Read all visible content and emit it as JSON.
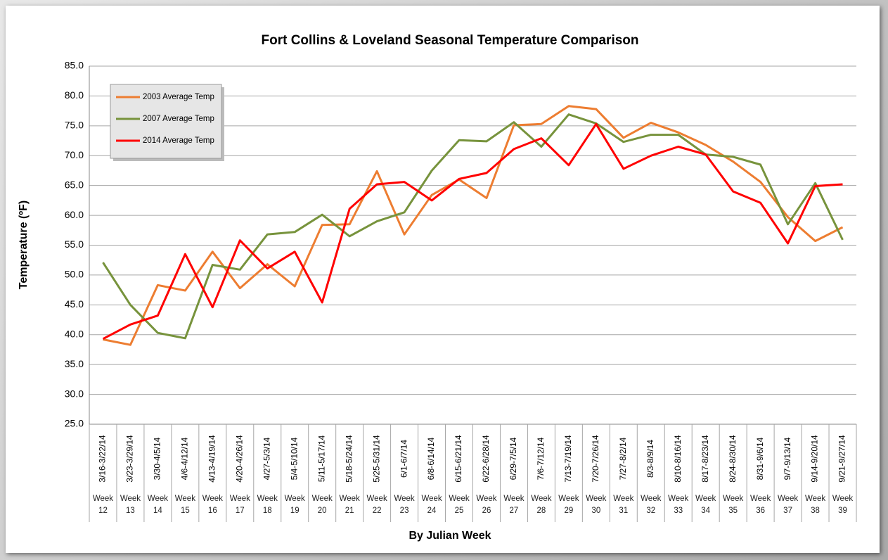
{
  "chart_data": {
    "type": "line",
    "title": "Fort Collins & Loveland  Seasonal Temperature Comparison",
    "y_label": "Temperature (ºF)",
    "x_label": "By Julian Week",
    "categories": [
      "3/16-3/22/14",
      "3/23-3/29/14",
      "3/30-4/5/14",
      "4/6-4/12/14",
      "4/13-4/19/14",
      "4/20-4/26/14",
      "4/27-5/3/14",
      "5/4-5/10/14",
      "5/11-5/17/14",
      "5/18-5/24/14",
      "5/25-5/31/14",
      "6/1-6/7/14",
      "6/8-6/14/14",
      "6/15-6/21/14",
      "6/22-6/28/14",
      "6/29-7/5/14",
      "7/6-7/12/14",
      "7/13-7/19/14",
      "7/20-7/26/14",
      "7/27-8/2/14",
      "8/3-8/9/14",
      "8/10-8/16/14",
      "8/17-8/23/14",
      "8/24-8/30/14",
      "8/31-9/6/14",
      "9/7-9/13/14",
      "9/14-9/20/14",
      "9/21-9/27/14"
    ],
    "weeks": [
      "Week 12",
      "Week 13",
      "Week 14",
      "Week 15",
      "Week 16",
      "Week 17",
      "Week 18",
      "Week 19",
      "Week 20",
      "Week 21",
      "Week 22",
      "Week 23",
      "Week 24",
      "Week 25",
      "Week 26",
      "Week 27",
      "Week 28",
      "Week 29",
      "Week 30",
      "Week 31",
      "Week 32",
      "Week 33",
      "Week 34",
      "Week 35",
      "Week 36",
      "Week 37",
      "Week 38",
      "Week 39"
    ],
    "series": [
      {
        "name": "2003 Average Temp",
        "color": "#ed7d31",
        "values": [
          39.2,
          38.3,
          48.3,
          47.4,
          53.9,
          47.8,
          51.8,
          48.1,
          58.4,
          58.5,
          67.4,
          56.8,
          63.4,
          66.0,
          62.9,
          75.1,
          75.3,
          78.3,
          77.8,
          73.0,
          75.5,
          73.9,
          71.8,
          69.0,
          65.6,
          59.7,
          55.7,
          58.0
        ]
      },
      {
        "name": "2007 Average Temp",
        "color": "#77933c",
        "values": [
          52.1,
          45.0,
          40.3,
          39.4,
          51.7,
          50.9,
          56.8,
          57.2,
          60.1,
          56.5,
          59.0,
          60.5,
          67.5,
          72.6,
          72.4,
          75.6,
          71.5,
          76.9,
          75.4,
          72.3,
          73.5,
          73.5,
          70.2,
          69.8,
          68.5,
          58.5,
          65.4,
          55.9
        ]
      },
      {
        "name": "2014 Average Temp",
        "color": "#ff0000",
        "values": [
          39.3,
          41.7,
          43.2,
          53.5,
          44.6,
          55.8,
          51.1,
          53.9,
          45.4,
          61.1,
          65.2,
          65.6,
          62.5,
          66.1,
          67.1,
          71.1,
          72.9,
          68.4,
          75.3,
          67.8,
          70.0,
          71.5,
          70.2,
          64.0,
          62.1,
          55.3,
          64.9,
          65.2
        ]
      }
    ],
    "ylim": [
      25,
      85
    ],
    "yticks": [
      {
        "value": 25,
        "label": "25.0"
      },
      {
        "value": 30,
        "label": "30.0"
      },
      {
        "value": 35,
        "label": "35.0"
      },
      {
        "value": 40,
        "label": "40.0"
      },
      {
        "value": 45,
        "label": "45.0"
      },
      {
        "value": 50,
        "label": "50.0"
      },
      {
        "value": 55,
        "label": "55.0"
      },
      {
        "value": 60,
        "label": "60.0"
      },
      {
        "value": 65,
        "label": "65.0"
      },
      {
        "value": 70,
        "label": "70.0"
      },
      {
        "value": 75,
        "label": "75.0"
      },
      {
        "value": 80,
        "label": "80.0"
      },
      {
        "value": 85,
        "label": "85.0"
      }
    ],
    "grid": true,
    "legend": "upper left"
  }
}
